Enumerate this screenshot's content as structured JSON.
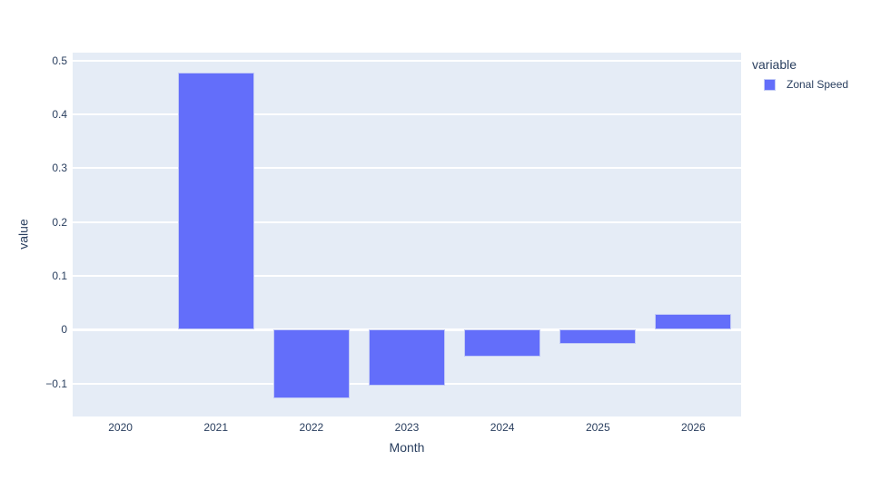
{
  "chart_data": {
    "type": "bar",
    "title": "",
    "categories": [
      "2020",
      "2021",
      "2022",
      "2023",
      "2024",
      "2025",
      "2026"
    ],
    "series": [
      {
        "name": "Zonal Speed",
        "color": "#636efa",
        "values": [
          0,
          0.478,
          -0.128,
          -0.104,
          -0.05,
          -0.026,
          0.029
        ]
      }
    ],
    "xlabel": "Month",
    "ylabel": "value",
    "ylim": [
      -0.161,
      0.5145
    ],
    "yticks": [
      -0.1,
      0,
      0.1,
      0.2,
      0.3,
      0.4,
      0.5
    ],
    "grid": true,
    "legend_title": "variable",
    "legend_position": "outside-top-right"
  },
  "colors": {
    "bar": "#636efa",
    "bar_edge": "#c3cbf6",
    "plot_background": "#e5ecf6",
    "gridline": "#ffffff",
    "text": "#2a3f5f",
    "page_background": "#ffffff"
  }
}
